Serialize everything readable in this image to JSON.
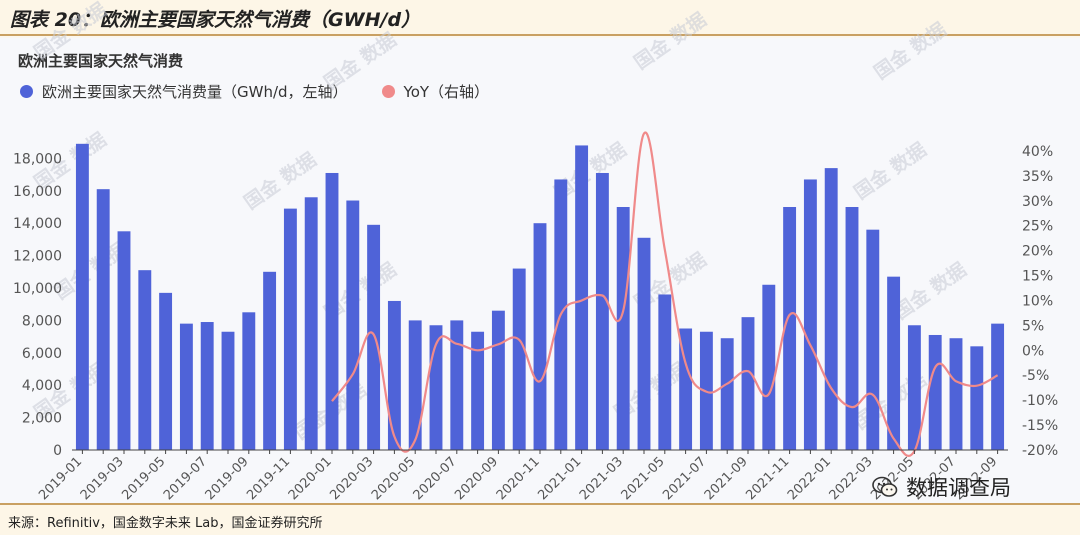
{
  "figure": {
    "title": "图表 20：欧洲主要国家天然气消费（GWH/d）",
    "subtitle": "欧洲主要国家天然气消费",
    "source": "来源：Refinitiv，国金数字未来 Lab，国金证券研究所",
    "wechat_label": "数据调查局",
    "watermark_text": "国金 数据"
  },
  "colors": {
    "bar": "#4f63d8",
    "line": "#f08a8a",
    "axis_text": "#555555",
    "header_border": "#c9a062"
  },
  "chart_data": {
    "type": "bar",
    "categories": [
      "2019-01",
      "2019-02",
      "2019-03",
      "2019-04",
      "2019-05",
      "2019-06",
      "2019-07",
      "2019-08",
      "2019-09",
      "2019-10",
      "2019-11",
      "2019-12",
      "2020-01",
      "2020-02",
      "2020-03",
      "2020-04",
      "2020-05",
      "2020-06",
      "2020-07",
      "2020-08",
      "2020-09",
      "2020-10",
      "2020-11",
      "2020-12",
      "2021-01",
      "2021-02",
      "2021-03",
      "2021-04",
      "2021-05",
      "2021-06",
      "2021-07",
      "2021-08",
      "2021-09",
      "2021-10",
      "2021-11",
      "2021-12",
      "2022-01",
      "2022-02",
      "2022-03",
      "2022-04",
      "2022-05",
      "2022-06",
      "2022-07",
      "2022-08",
      "2022-09"
    ],
    "x_tick_labels": [
      "2019-01",
      "2019-03",
      "2019-05",
      "2019-07",
      "2019-09",
      "2019-11",
      "2020-01",
      "2020-03",
      "2020-05",
      "2020-07",
      "2020-09",
      "2020-11",
      "2021-01",
      "2021-03",
      "2021-05",
      "2021-07",
      "2021-09",
      "2021-11",
      "2022-01",
      "2022-03",
      "2022-05",
      "2022-07",
      "2022-09"
    ],
    "series": [
      {
        "name": "欧洲主要国家天然气消费量（GWh/d，左轴）",
        "type": "bar",
        "axis": "left",
        "values": [
          18900,
          16100,
          13500,
          11100,
          9700,
          7800,
          7900,
          7300,
          8500,
          11000,
          14900,
          15600,
          17100,
          15400,
          13900,
          9200,
          8000,
          7700,
          8000,
          7300,
          8600,
          11200,
          14000,
          16700,
          18800,
          17100,
          15000,
          13100,
          9600,
          7500,
          7300,
          6900,
          8200,
          10200,
          15000,
          16700,
          17400,
          15000,
          13600,
          10700,
          7700,
          7100,
          6900,
          6400,
          7800
        ]
      },
      {
        "name": "YoY（右轴）",
        "type": "line",
        "axis": "right",
        "values": [
          null,
          null,
          null,
          null,
          null,
          null,
          null,
          null,
          null,
          null,
          null,
          null,
          -10.2,
          -4.8,
          3.2,
          -17.3,
          -18.0,
          1.2,
          1.3,
          0.0,
          1.2,
          2.1,
          -6.2,
          7.2,
          10.0,
          11.0,
          7.9,
          43.5,
          20.2,
          -2.6,
          -8.3,
          -6.7,
          -4.2,
          -8.8,
          7.1,
          1.0,
          -7.6,
          -11.4,
          -8.9,
          -17.7,
          -20.2,
          -3.4,
          -6.2,
          -7.1,
          -5.0
        ]
      }
    ],
    "y_left": {
      "ylim": [
        0,
        20000
      ],
      "ticks": [
        0,
        2000,
        4000,
        6000,
        8000,
        10000,
        12000,
        14000,
        16000,
        18000
      ],
      "tick_labels": [
        "0",
        "2,000",
        "4,000",
        "6,000",
        "8,000",
        "10,000",
        "12,000",
        "14,000",
        "16,000",
        "18,000"
      ]
    },
    "y_right": {
      "ylim": [
        -20,
        45
      ],
      "ticks": [
        -20,
        -15,
        -10,
        -5,
        0,
        5,
        10,
        15,
        20,
        25,
        30,
        35,
        40
      ],
      "tick_labels": [
        "-20%",
        "-15%",
        "-10%",
        "-5%",
        "0%",
        "5%",
        "10%",
        "15%",
        "20%",
        "25%",
        "30%",
        "35%",
        "40%"
      ]
    },
    "grid": false,
    "legend_position": "top-left"
  }
}
